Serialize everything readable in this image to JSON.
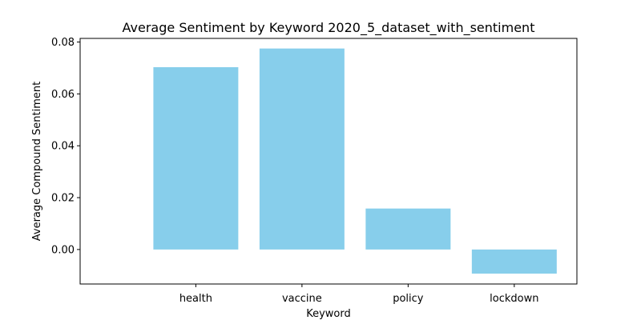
{
  "chart_data": {
    "type": "bar",
    "title": "Average Sentiment by Keyword 2020_5_dataset_with_sentiment",
    "xlabel": "Keyword",
    "ylabel": "Average Compound Sentiment",
    "categories": [
      "health",
      "vaccine",
      "policy",
      "lockdown"
    ],
    "values": [
      0.0703,
      0.0775,
      0.0158,
      -0.0093
    ],
    "ylim": [
      -0.0133,
      0.0814
    ],
    "yticks": [
      0.0,
      0.02,
      0.04,
      0.06,
      0.08
    ],
    "ytick_labels": [
      "0.00",
      "0.02",
      "0.04",
      "0.06",
      "0.08"
    ],
    "bar_color": "#87ceeb",
    "grid": false
  }
}
